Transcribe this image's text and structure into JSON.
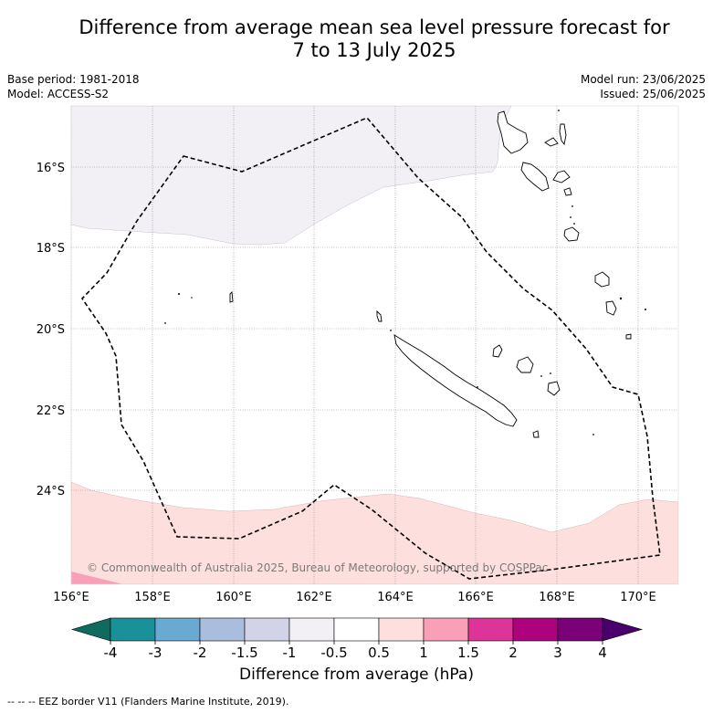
{
  "title": {
    "line1": "Difference from average mean sea level pressure forecast for",
    "line2": "7 to 13 July 2025"
  },
  "meta": {
    "base_period": "Base period: 1981-2018",
    "model": "Model: ACCESS-S2",
    "model_run": "Model run: 23/06/2025",
    "issued": "Issued: 25/06/2025"
  },
  "map": {
    "lon_labels": [
      "156°E",
      "158°E",
      "160°E",
      "162°E",
      "164°E",
      "166°E",
      "168°E",
      "170°E"
    ],
    "lat_labels": [
      "16°S",
      "18°S",
      "20°S",
      "22°S",
      "24°S"
    ],
    "copyright": "© Commonwealth of Australia 2025, Bureau of Meteorology, supported by COSPPac"
  },
  "colorbar": {
    "title": "Difference from average (hPa)",
    "tick_labels": [
      "-4",
      "-3",
      "-2",
      "-1.5",
      "-1",
      "-0.5",
      "0.5",
      "1",
      "1.5",
      "2",
      "3",
      "4"
    ],
    "colors": [
      "#0f6b5e",
      "#1a9199",
      "#68aad2",
      "#a9bddf",
      "#d2d3e7",
      "#f2eff5",
      "#ffffff",
      "#fde0dd",
      "#f99fb8",
      "#dd3497",
      "#ae017e",
      "#7a0177",
      "#49006a"
    ]
  },
  "legend": {
    "eez": "--  --  -- EEZ border V11 (Flanders Marine Institute, 2019)."
  },
  "colors": {
    "negative_fill": "#f2eff5",
    "positive_fill": "#fde0dd",
    "strong_positive_fill": "#f99fb8"
  }
}
